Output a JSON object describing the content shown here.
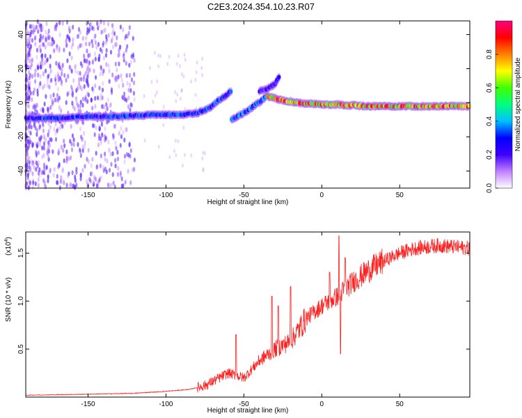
{
  "title": "C2E3.2024.354.10.23.R07",
  "chart_data": [
    {
      "type": "heatmap",
      "xlabel": "Height of straight line (km)",
      "ylabel": "Frequency (Hz)",
      "xlim": [
        -190,
        95
      ],
      "ylim": [
        -50,
        48
      ],
      "x_ticks": [
        -150,
        -100,
        -50,
        0,
        50
      ],
      "x_tick_labels": [
        "-150",
        "-100",
        "-50",
        "0",
        "50"
      ],
      "y_ticks": [
        -40,
        -20,
        0,
        20,
        40
      ],
      "y_tick_labels": [
        "-40",
        "-20",
        "0",
        "20",
        "40"
      ],
      "grid": false,
      "colorbar": {
        "label": "Normalized spectral amplitude",
        "range": [
          0,
          1
        ],
        "ticks": [
          0.0,
          0.2,
          0.4,
          0.6,
          0.8
        ],
        "tick_labels": [
          "0.0",
          "0.2",
          "0.4",
          "0.6",
          "0.8"
        ],
        "colors": [
          "#ffffff",
          "#c080ff",
          "#4000ff",
          "#0000ff",
          "#00c0ff",
          "#00ff80",
          "#40ff00",
          "#ffff00",
          "#ff8000",
          "#ff0000",
          "#ff0080"
        ]
      },
      "ridges": [
        {
          "points": [
            [
              -190,
              -9
            ],
            [
              -170,
              -9
            ],
            [
              -150,
              -8
            ],
            [
              -130,
              -8
            ],
            [
              -110,
              -7
            ],
            [
              -90,
              -7
            ],
            [
              -80,
              -6
            ],
            [
              -72,
              -3
            ],
            [
              -65,
              2
            ],
            [
              -58,
              7
            ]
          ],
          "amplitude": 0.35
        },
        {
          "points": [
            [
              -58,
              -10
            ],
            [
              -50,
              -6
            ],
            [
              -42,
              -1
            ],
            [
              -35,
              4
            ]
          ],
          "amplitude": 0.4
        },
        {
          "points": [
            [
              -40,
              7
            ],
            [
              -35,
              8
            ],
            [
              -30,
              11
            ],
            [
              -27,
              16
            ]
          ],
          "amplitude": 0.25
        },
        {
          "points": [
            [
              -35,
              4
            ],
            [
              -28,
              2
            ],
            [
              -15,
              0
            ],
            [
              0,
              -1
            ],
            [
              10,
              -1
            ],
            [
              30,
              -2
            ],
            [
              60,
              -2
            ],
            [
              95,
              -2
            ]
          ],
          "amplitude": 0.9
        }
      ]
    },
    {
      "type": "line",
      "xlabel": "Height of straight line (km)",
      "ylabel": "SNR (10 * v/v)",
      "y_scale_note": "(x10",
      "y_scale_exp": "4",
      "y_scale_close": ")",
      "xlim": [
        -190,
        95
      ],
      "ylim": [
        0,
        1.72
      ],
      "x_ticks": [
        -150,
        -100,
        -50,
        0,
        50
      ],
      "x_tick_labels": [
        "-150",
        "-100",
        "-50",
        "0",
        "50"
      ],
      "y_ticks": [
        0.5,
        1.0,
        1.5
      ],
      "y_tick_labels": [
        "0.5",
        "1.0",
        "1.5"
      ],
      "grid": false,
      "color": "#ff2020",
      "trend": {
        "x": [
          -190,
          -150,
          -120,
          -100,
          -85,
          -75,
          -60,
          -50,
          -40,
          -30,
          -20,
          -10,
          0,
          10,
          20,
          30,
          40,
          50,
          60,
          75,
          95
        ],
        "y": [
          0.02,
          0.03,
          0.04,
          0.06,
          0.08,
          0.12,
          0.25,
          0.2,
          0.38,
          0.5,
          0.58,
          0.82,
          0.95,
          1.05,
          1.2,
          1.32,
          1.42,
          1.5,
          1.55,
          1.58,
          1.55
        ]
      },
      "spikes": [
        {
          "x": -55,
          "y": 0.65
        },
        {
          "x": -32,
          "y": 1.05
        },
        {
          "x": -28,
          "y": 0.95
        },
        {
          "x": -20,
          "y": 1.15
        },
        {
          "x": 5,
          "y": 1.3
        },
        {
          "x": 11,
          "y": 1.68
        },
        {
          "x": 12,
          "y": 0.45
        },
        {
          "x": 15,
          "y": 1.45
        }
      ]
    }
  ]
}
